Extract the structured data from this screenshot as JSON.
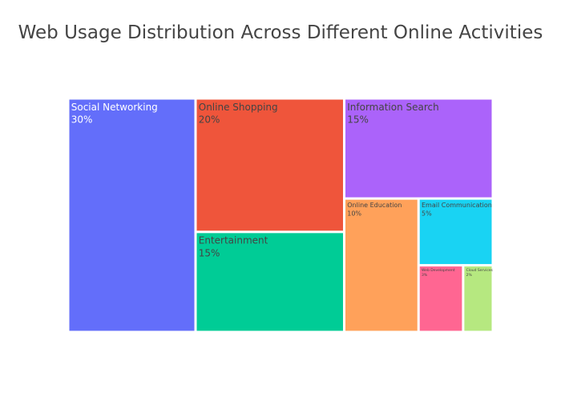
{
  "chart_data": {
    "type": "treemap",
    "title": "Web Usage Distribution Across Different Online Activities",
    "unit": "%",
    "items": [
      {
        "label": "Social Networking",
        "value": 30,
        "value_text": "30%",
        "color": "#636efa",
        "text_color": "#ffffff"
      },
      {
        "label": "Online Shopping",
        "value": 20,
        "value_text": "20%",
        "color": "#ef553b",
        "text_color": "#444444"
      },
      {
        "label": "Entertainment",
        "value": 15,
        "value_text": "15%",
        "color": "#00cc96",
        "text_color": "#444444"
      },
      {
        "label": "Information Search",
        "value": 15,
        "value_text": "15%",
        "color": "#ab63fa",
        "text_color": "#444444"
      },
      {
        "label": "Online Education",
        "value": 10,
        "value_text": "10%",
        "color": "#ffa15a",
        "text_color": "#444444"
      },
      {
        "label": "Email Communication",
        "value": 5,
        "value_text": "5%",
        "color": "#19d3f3",
        "text_color": "#444444"
      },
      {
        "label": "Web Development",
        "value": 3,
        "value_text": "3%",
        "color": "#ff6692",
        "text_color": "#444444"
      },
      {
        "label": "Cloud Services",
        "value": 2,
        "value_text": "2%",
        "color": "#b6e880",
        "text_color": "#444444"
      }
    ]
  }
}
